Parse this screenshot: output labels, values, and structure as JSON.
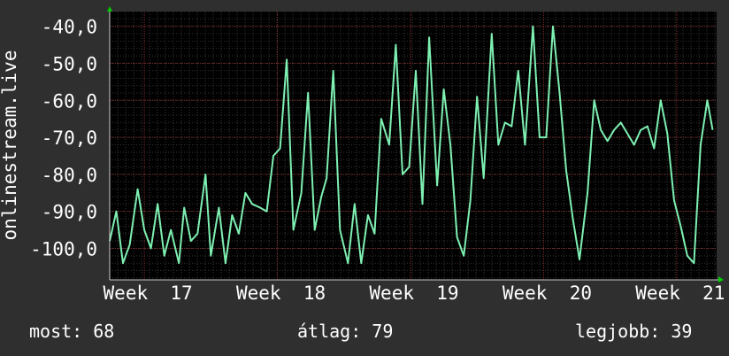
{
  "chart_data": {
    "type": "line",
    "ylabel": "onlinestream.live",
    "y_ticks": [
      "-40,0",
      "-50,0",
      "-60,0",
      "-70,0",
      "-80,0",
      "-90,0",
      "-100,0"
    ],
    "y_tick_values": [
      -40,
      -50,
      -60,
      -70,
      -80,
      -90,
      -100
    ],
    "ylim": [
      -108.5,
      -36
    ],
    "x_ticks": [
      "Week  17",
      "Week  18",
      "Week  19",
      "Week  20",
      "Week  21"
    ],
    "xlim": [
      16.74,
      21.3
    ],
    "grid": true,
    "series": [
      {
        "color": "#7ef0b2",
        "x": [
          16.74,
          16.79,
          16.84,
          16.89,
          16.95,
          17.0,
          17.05,
          17.1,
          17.15,
          17.2,
          17.26,
          17.3,
          17.35,
          17.4,
          17.46,
          17.5,
          17.56,
          17.61,
          17.66,
          17.71,
          17.76,
          17.81,
          17.87,
          17.92,
          17.97,
          18.02,
          18.07,
          18.12,
          18.18,
          18.23,
          18.28,
          18.33,
          18.37,
          18.42,
          18.47,
          18.53,
          18.58,
          18.63,
          18.68,
          18.73,
          18.78,
          18.84,
          18.89,
          18.94,
          18.99,
          19.04,
          19.09,
          19.14,
          19.2,
          19.25,
          19.3,
          19.35,
          19.4,
          19.45,
          19.5,
          19.55,
          19.61,
          19.66,
          19.71,
          19.76,
          19.81,
          19.86,
          19.92,
          19.97,
          20.02,
          20.07,
          20.12,
          20.17,
          20.22,
          20.27,
          20.33,
          20.38,
          20.43,
          20.48,
          20.53,
          20.58,
          20.63,
          20.68,
          20.73,
          20.78,
          20.83,
          20.88,
          20.93,
          20.98,
          21.03,
          21.08,
          21.13,
          21.18,
          21.23,
          21.27
        ],
        "values": [
          -98,
          -90,
          -104,
          -99,
          -84,
          -95,
          -100,
          -88,
          -102,
          -95,
          -104,
          -89,
          -98,
          -96,
          -80,
          -102,
          -89,
          -104,
          -91,
          -96,
          -85,
          -88,
          -89,
          -90,
          -75,
          -73,
          -49,
          -95,
          -85,
          -58,
          -95,
          -86,
          -81,
          -52,
          -95,
          -104,
          -88,
          -104,
          -91,
          -96,
          -65,
          -72,
          -45,
          -80,
          -78,
          -52,
          -88,
          -43,
          -83,
          -57,
          -72,
          -97,
          -102,
          -87,
          -59,
          -81,
          -42,
          -72,
          -66,
          -67,
          -52,
          -72,
          -40,
          -70,
          -70,
          -40,
          -58,
          -79,
          -92,
          -103,
          -85,
          -60,
          -68,
          -71,
          -68,
          -66,
          -69,
          -72,
          -68,
          -67,
          -73,
          -60,
          -69,
          -87,
          -94,
          -102,
          -104,
          -72,
          -60,
          -68
        ]
      }
    ]
  },
  "stats": {
    "now": "most: 68",
    "average": "átlag: 79",
    "best": "legjobb: 39"
  }
}
